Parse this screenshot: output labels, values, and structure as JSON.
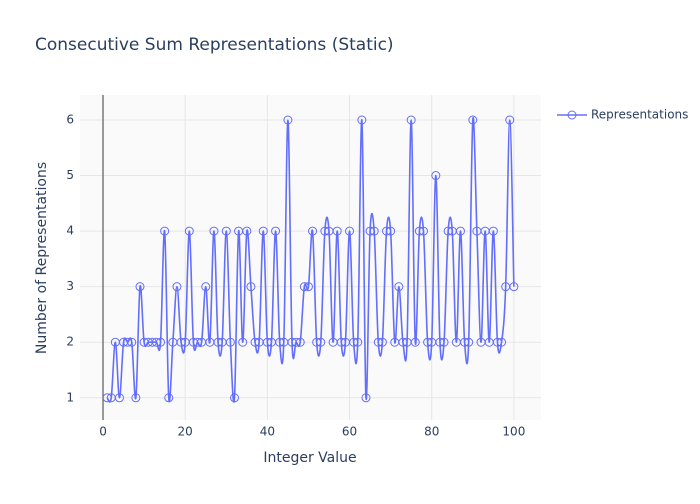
{
  "chart_data": {
    "type": "line",
    "title": "Consecutive Sum Representations (Static)",
    "x_label": "Integer Value",
    "y_label": "Number of Representations",
    "x": [
      1,
      2,
      3,
      4,
      5,
      6,
      7,
      8,
      9,
      10,
      11,
      12,
      13,
      14,
      15,
      16,
      17,
      18,
      19,
      20,
      21,
      22,
      23,
      24,
      25,
      26,
      27,
      28,
      29,
      30,
      31,
      32,
      33,
      34,
      35,
      36,
      37,
      38,
      39,
      40,
      41,
      42,
      43,
      44,
      45,
      46,
      47,
      48,
      49,
      50,
      51,
      52,
      53,
      54,
      55,
      56,
      57,
      58,
      59,
      60,
      61,
      62,
      63,
      64,
      65,
      66,
      67,
      68,
      69,
      70,
      71,
      72,
      73,
      74,
      75,
      76,
      77,
      78,
      79,
      80,
      81,
      82,
      83,
      84,
      85,
      86,
      87,
      88,
      89,
      90,
      91,
      92,
      93,
      94,
      95,
      96,
      97,
      98,
      99,
      100
    ],
    "series": [
      {
        "name": "Representations",
        "color": "#636efa",
        "values": [
          1,
          1,
          2,
          1,
          2,
          2,
          2,
          1,
          3,
          2,
          2,
          2,
          2,
          2,
          4,
          1,
          2,
          3,
          2,
          2,
          4,
          2,
          2,
          2,
          3,
          2,
          4,
          2,
          2,
          4,
          2,
          1,
          4,
          2,
          4,
          3,
          2,
          2,
          4,
          2,
          2,
          4,
          2,
          2,
          6,
          2,
          2,
          2,
          3,
          3,
          4,
          2,
          2,
          4,
          4,
          2,
          4,
          2,
          2,
          4,
          2,
          2,
          6,
          1,
          4,
          4,
          2,
          2,
          4,
          4,
          2,
          3,
          2,
          2,
          6,
          2,
          4,
          4,
          2,
          2,
          5,
          2,
          2,
          4,
          4,
          2,
          4,
          2,
          2,
          6,
          4,
          2,
          4,
          2,
          4,
          2,
          2,
          3,
          6,
          3
        ]
      }
    ],
    "xlim": [
      -5.6,
      106.6
    ],
    "xticks": [
      0,
      20,
      40,
      60,
      80,
      100
    ],
    "ylim": [
      0.6,
      6.45
    ],
    "yticks": [
      1,
      2,
      3,
      4,
      5,
      6
    ],
    "grid": true,
    "legend": "top-right"
  }
}
